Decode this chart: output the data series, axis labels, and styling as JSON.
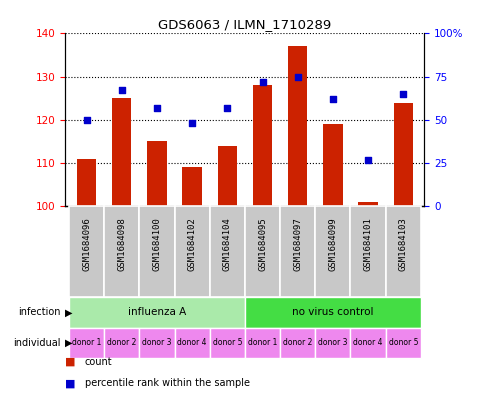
{
  "title": "GDS6063 / ILMN_1710289",
  "samples": [
    "GSM1684096",
    "GSM1684098",
    "GSM1684100",
    "GSM1684102",
    "GSM1684104",
    "GSM1684095",
    "GSM1684097",
    "GSM1684099",
    "GSM1684101",
    "GSM1684103"
  ],
  "counts": [
    111,
    125,
    115,
    109,
    114,
    128,
    137,
    119,
    101,
    124
  ],
  "percentiles": [
    50,
    67,
    57,
    48,
    57,
    72,
    75,
    62,
    27,
    65
  ],
  "infection_groups": [
    {
      "label": "influenza A",
      "start": 0,
      "end": 5,
      "color": "#aaeaaa"
    },
    {
      "label": "no virus control",
      "start": 5,
      "end": 10,
      "color": "#44dd44"
    }
  ],
  "individual_labels": [
    "donor 1",
    "donor 2",
    "donor 3",
    "donor 4",
    "donor 5",
    "donor 1",
    "donor 2",
    "donor 3",
    "donor 4",
    "donor 5"
  ],
  "bar_color": "#cc2200",
  "dot_color": "#0000cc",
  "ylim_left": [
    100,
    140
  ],
  "ylim_right": [
    0,
    100
  ],
  "yticks_left": [
    100,
    110,
    120,
    130,
    140
  ],
  "yticks_right": [
    0,
    25,
    50,
    75,
    100
  ],
  "ytick_labels_right": [
    "0",
    "25",
    "50",
    "75",
    "100%"
  ],
  "background_color": "#ffffff",
  "bar_width": 0.55,
  "base_value": 100,
  "gray_box": "#c8c8c8",
  "pink_box": "#ee88ee",
  "sample_fontsize": 6.5,
  "legend_bar_color": "#cc2200",
  "legend_dot_color": "#0000cc"
}
